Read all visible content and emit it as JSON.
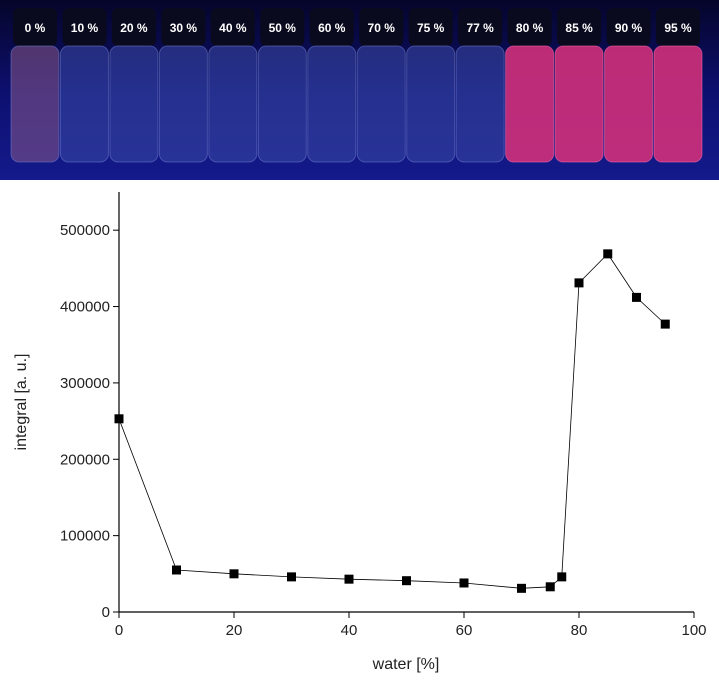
{
  "photo": {
    "labels": [
      "0 %",
      "10 %",
      "20 %",
      "30 %",
      "40 %",
      "50 %",
      "60 %",
      "70 %",
      "75 %",
      "77 %",
      "80 %",
      "85 %",
      "90 %",
      "95 %"
    ]
  },
  "chart_data": {
    "type": "line",
    "xlabel": "water [%]",
    "ylabel": "integral [a. u.]",
    "x": [
      0,
      10,
      20,
      30,
      40,
      50,
      60,
      70,
      75,
      77,
      80,
      85,
      90,
      95
    ],
    "series": [
      {
        "color": "#000000",
        "values": [
          253000,
          55000,
          50000,
          46000,
          43000,
          41000,
          38000,
          31000,
          33000,
          46000,
          431000,
          469000,
          412000,
          377000
        ]
      }
    ],
    "xlim": [
      0,
      100
    ],
    "xticks": [
      0,
      20,
      40,
      60,
      80,
      100
    ],
    "ylim": [
      0,
      550000
    ],
    "yticks": [
      0,
      100000,
      200000,
      300000,
      400000,
      500000
    ]
  }
}
